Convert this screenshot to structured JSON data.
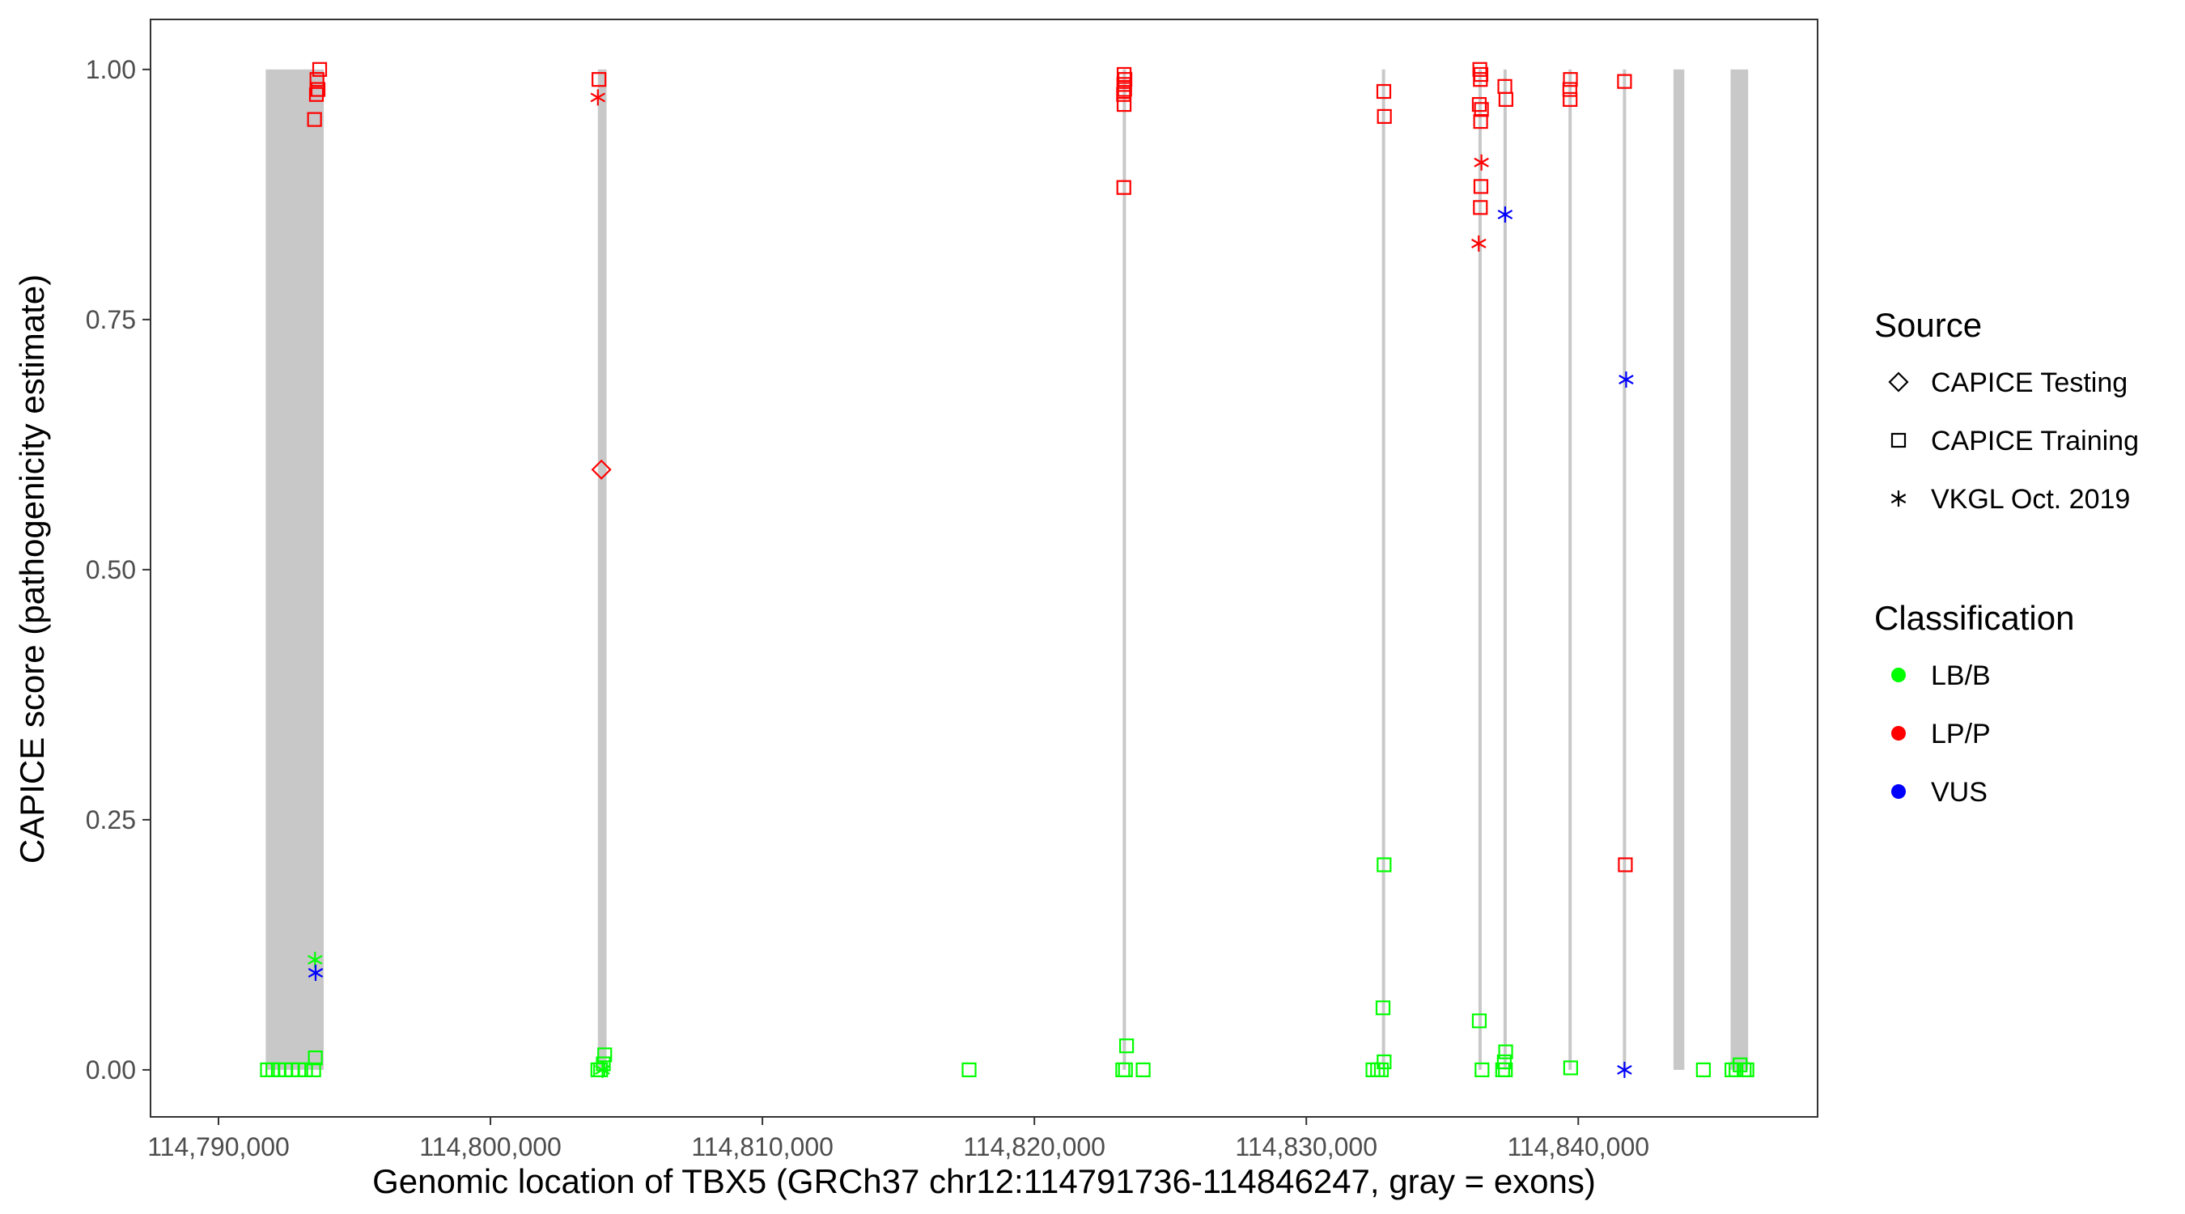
{
  "chart_data": {
    "type": "scatter",
    "xlabel": "Genomic location of TBX5 (GRCh37 chr12:114791736-114846247, gray = exons)",
    "ylabel": "CAPICE score (pathogenicity estimate)",
    "xlim": [
      114787500,
      114848800
    ],
    "ylim": [
      -0.047,
      1.05
    ],
    "x_ticks": [
      114790000,
      114800000,
      114810000,
      114820000,
      114830000,
      114840000
    ],
    "x_tick_labels": [
      "114,790,000",
      "114,800,000",
      "114,810,000",
      "114,820,000",
      "114,830,000",
      "114,840,000"
    ],
    "y_ticks": [
      0.0,
      0.25,
      0.5,
      0.75,
      1.0
    ],
    "y_tick_labels": [
      "0.00",
      "0.25",
      "0.50",
      "0.75",
      "1.00"
    ],
    "grid": false,
    "exon_color": "#c8c8c8",
    "exons": [
      {
        "start": 114791736,
        "end": 114793870
      },
      {
        "start": 114803950,
        "end": 114804270
      },
      {
        "start": 114823250,
        "end": 114823340
      },
      {
        "start": 114832780,
        "end": 114832880
      },
      {
        "start": 114836330,
        "end": 114836430
      },
      {
        "start": 114837250,
        "end": 114837350
      },
      {
        "start": 114839640,
        "end": 114839740
      },
      {
        "start": 114841640,
        "end": 114841740
      },
      {
        "start": 114843500,
        "end": 114843900
      },
      {
        "start": 114845600,
        "end": 114846247
      }
    ],
    "legend": {
      "position": "right",
      "source_title": "Source",
      "source_items": [
        {
          "label": "CAPICE Testing",
          "shape": "diamond"
        },
        {
          "label": "CAPICE Training",
          "shape": "square"
        },
        {
          "label": "VKGL Oct. 2019",
          "shape": "asterisk"
        }
      ],
      "class_title": "Classification",
      "class_items": [
        {
          "label": "LB/B",
          "color": "#00ff00"
        },
        {
          "label": "LP/P",
          "color": "#ff0000"
        },
        {
          "label": "VUS",
          "color": "#0000ff"
        }
      ]
    },
    "series": [
      {
        "source": "CAPICE Training",
        "classification": "LP/P",
        "shape": "square",
        "color": "#ff0000",
        "points": [
          [
            114793720,
            1.0
          ],
          [
            114793620,
            0.99
          ],
          [
            114793660,
            0.98
          ],
          [
            114793600,
            0.975
          ],
          [
            114793530,
            0.95
          ],
          [
            114803990,
            0.99
          ],
          [
            114823300,
            0.995
          ],
          [
            114823330,
            0.99
          ],
          [
            114823290,
            0.985
          ],
          [
            114823320,
            0.98
          ],
          [
            114823280,
            0.975
          ],
          [
            114823300,
            0.965
          ],
          [
            114823290,
            0.882
          ],
          [
            114832850,
            0.978
          ],
          [
            114832870,
            0.953
          ],
          [
            114836380,
            1.0
          ],
          [
            114836420,
            0.995
          ],
          [
            114836400,
            0.99
          ],
          [
            114836360,
            0.965
          ],
          [
            114836440,
            0.96
          ],
          [
            114836410,
            0.948
          ],
          [
            114836420,
            0.883
          ],
          [
            114836400,
            0.862
          ],
          [
            114837300,
            0.983
          ],
          [
            114837340,
            0.97
          ],
          [
            114839710,
            0.99
          ],
          [
            114839690,
            0.98
          ],
          [
            114839700,
            0.97
          ],
          [
            114841700,
            0.988
          ],
          [
            114841730,
            0.205
          ]
        ]
      },
      {
        "source": "CAPICE Training",
        "classification": "LB/B",
        "shape": "square",
        "color": "#00ff00",
        "points": [
          [
            114791800,
            0.0
          ],
          [
            114792000,
            0.0
          ],
          [
            114792200,
            0.0
          ],
          [
            114792450,
            0.0
          ],
          [
            114792700,
            0.0
          ],
          [
            114792950,
            0.0
          ],
          [
            114793200,
            0.0
          ],
          [
            114793500,
            0.0
          ],
          [
            114793560,
            0.012
          ],
          [
            114803950,
            0.0
          ],
          [
            114804050,
            0.0
          ],
          [
            114804150,
            0.006
          ],
          [
            114804200,
            0.015
          ],
          [
            114817600,
            0.0
          ],
          [
            114823250,
            0.0
          ],
          [
            114823350,
            0.0
          ],
          [
            114823390,
            0.024
          ],
          [
            114824000,
            0.0
          ],
          [
            114832450,
            0.0
          ],
          [
            114832620,
            0.0
          ],
          [
            114832760,
            0.0
          ],
          [
            114832860,
            0.008
          ],
          [
            114832820,
            0.062
          ],
          [
            114832860,
            0.205
          ],
          [
            114836460,
            0.0
          ],
          [
            114836360,
            0.049
          ],
          [
            114837220,
            0.0
          ],
          [
            114837320,
            0.0
          ],
          [
            114837280,
            0.008
          ],
          [
            114837330,
            0.018
          ],
          [
            114839720,
            0.002
          ],
          [
            114844600,
            0.0
          ],
          [
            114845650,
            0.0
          ],
          [
            114845800,
            0.0
          ],
          [
            114845950,
            0.005
          ],
          [
            114846100,
            0.0
          ],
          [
            114846200,
            0.0
          ]
        ]
      },
      {
        "source": "CAPICE Testing",
        "classification": "LP/P",
        "shape": "diamond",
        "color": "#ff0000",
        "points": [
          [
            114804080,
            0.6
          ]
        ]
      },
      {
        "source": "VKGL Oct. 2019",
        "classification": "LP/P",
        "shape": "asterisk",
        "color": "#ff0000",
        "points": [
          [
            114803950,
            0.972
          ],
          [
            114836440,
            0.907
          ],
          [
            114836340,
            0.826
          ]
        ]
      },
      {
        "source": "VKGL Oct. 2019",
        "classification": "LB/B",
        "shape": "asterisk",
        "color": "#00ff00",
        "points": [
          [
            114793550,
            0.11
          ],
          [
            114804120,
            0.0
          ]
        ]
      },
      {
        "source": "VKGL Oct. 2019",
        "classification": "VUS",
        "shape": "asterisk",
        "color": "#0000ff",
        "points": [
          [
            114793570,
            0.097
          ],
          [
            114837310,
            0.855
          ],
          [
            114841760,
            0.69
          ],
          [
            114841700,
            0.0
          ]
        ]
      }
    ]
  }
}
